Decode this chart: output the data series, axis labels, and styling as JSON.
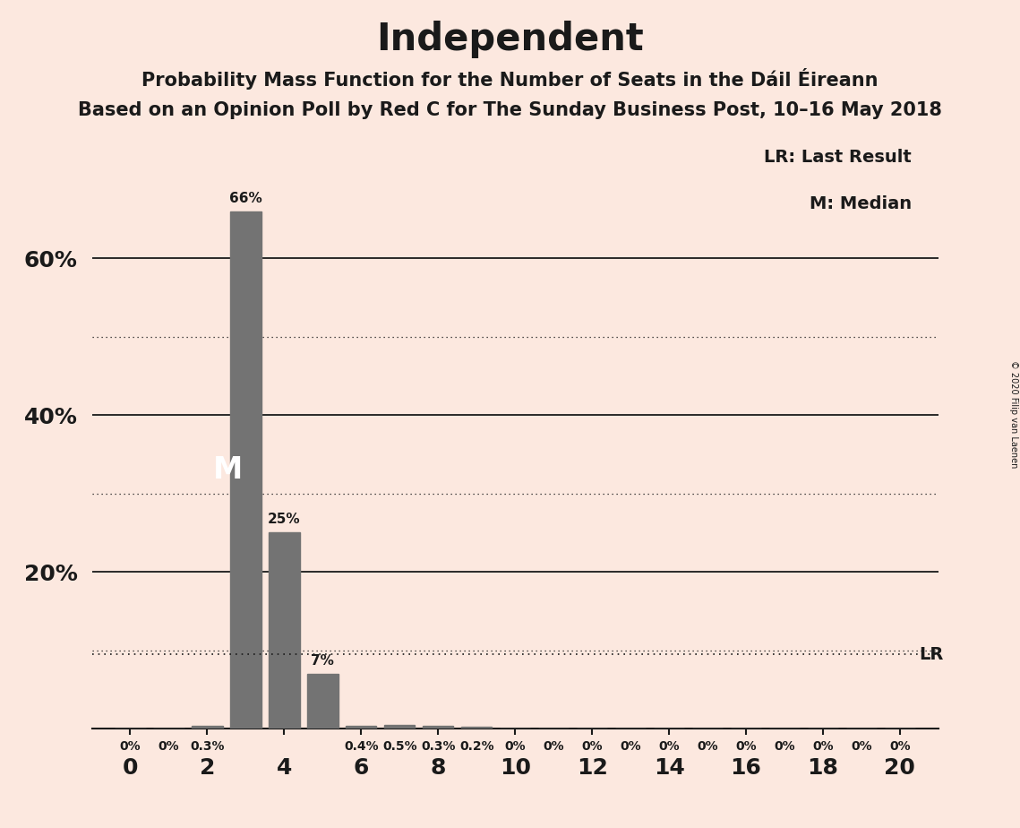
{
  "title": "Independent",
  "subtitle1": "Probability Mass Function for the Number of Seats in the Dáil Éireann",
  "subtitle2": "Based on an Opinion Poll by Red C for The Sunday Business Post, 10–16 May 2018",
  "copyright": "© 2020 Filip van Laenen",
  "background_color": "#fce8df",
  "bar_color": "#737373",
  "seats": [
    0,
    1,
    2,
    3,
    4,
    5,
    6,
    7,
    8,
    9,
    10,
    11,
    12,
    13,
    14,
    15,
    16,
    17,
    18,
    19,
    20
  ],
  "probabilities": [
    0.0,
    0.0,
    0.3,
    66.0,
    25.0,
    7.0,
    0.4,
    0.5,
    0.3,
    0.2,
    0.0,
    0.0,
    0.0,
    0.0,
    0.0,
    0.0,
    0.0,
    0.0,
    0.0,
    0.0,
    0.0
  ],
  "labels": [
    "0%",
    "0%",
    "0.3%",
    "66%",
    "25%",
    "7%",
    "0.4%",
    "0.5%",
    "0.3%",
    "0.2%",
    "0%",
    "0%",
    "0%",
    "0%",
    "0%",
    "0%",
    "0%",
    "0%",
    "0%",
    "0%",
    "0%"
  ],
  "median": 3,
  "last_result": 19,
  "lr_value": 9.5,
  "ylim": [
    0,
    75
  ],
  "solid_yticks": [
    20,
    40,
    60
  ],
  "dotted_yticks": [
    10,
    30,
    50
  ],
  "legend_lr": "LR: Last Result",
  "legend_m": "M: Median",
  "lr_label": "LR",
  "m_label": "M",
  "title_fontsize": 30,
  "subtitle_fontsize": 15,
  "axis_fontsize": 18,
  "label_fontsize": 11,
  "annotation_fontsize": 22
}
